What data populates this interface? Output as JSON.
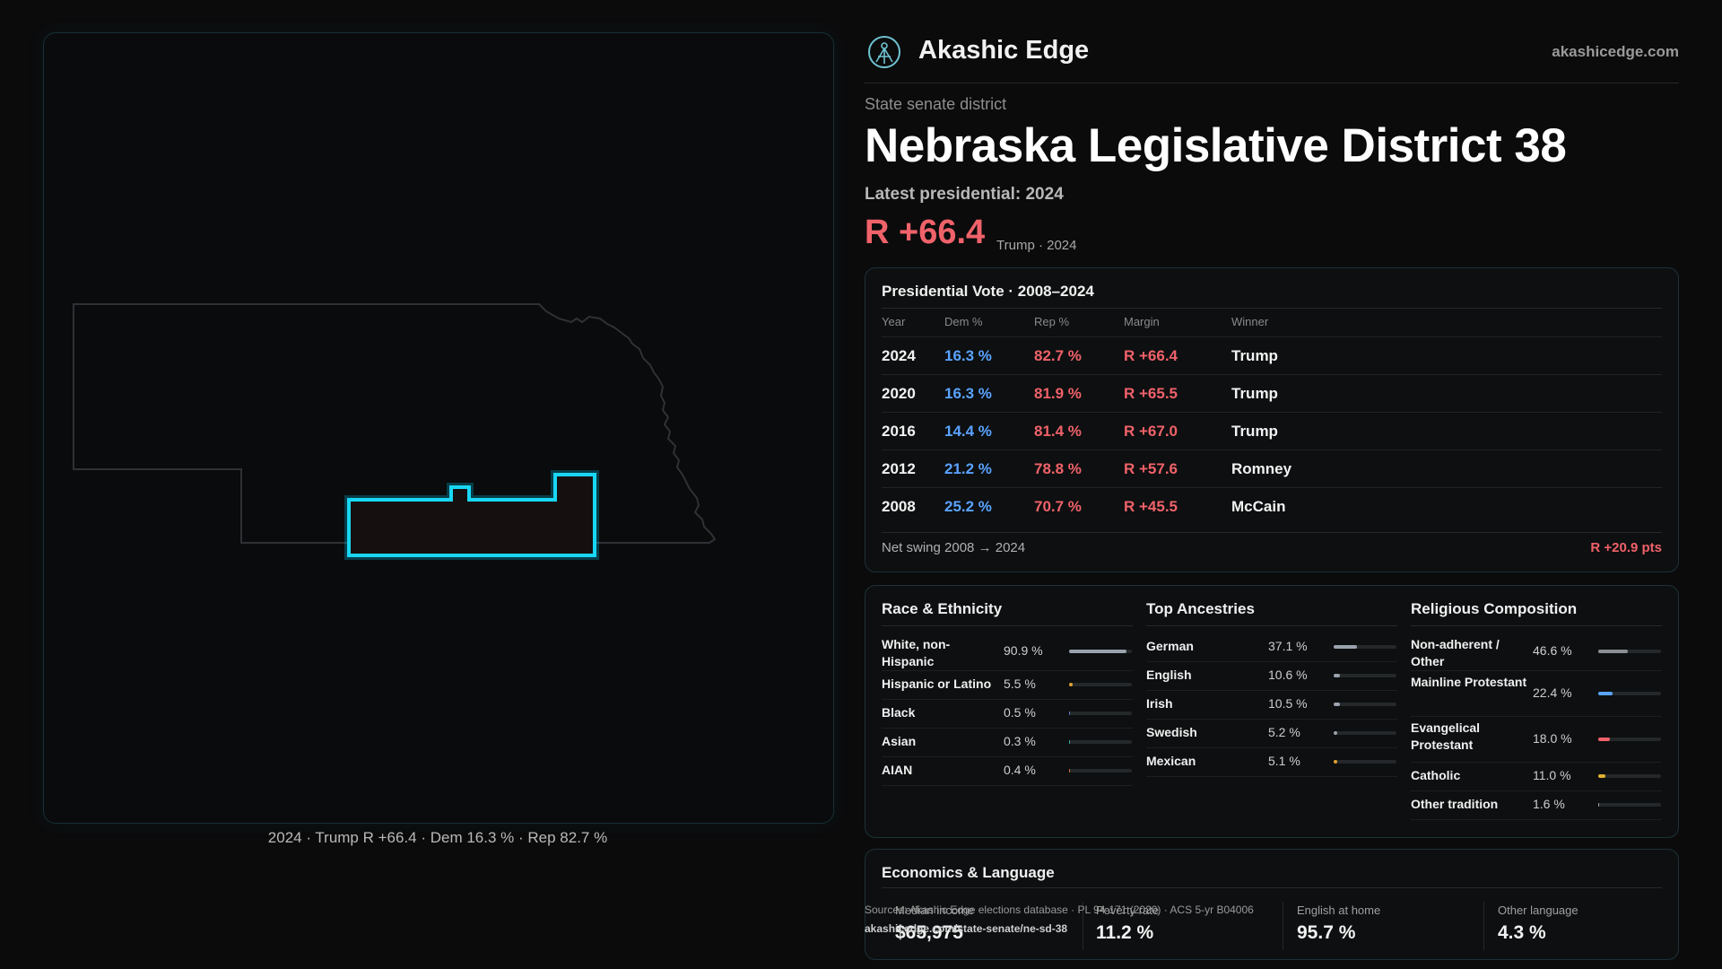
{
  "brand": {
    "name": "Akashic Edge",
    "url": "akashicedge.com",
    "logo_icon": "atom-compass-icon"
  },
  "district": {
    "type": "State senate district",
    "title": "Nebraska Legislative District 38",
    "latest_label": "Latest presidential: 2024",
    "margin": "R +66.4",
    "margin_sub": "Trump · 2024"
  },
  "map": {
    "caption": "2024 · Trump R +66.4 · Dem 16.3 % · Rep 82.7 %"
  },
  "presidential": {
    "title": "Presidential Vote · 2008–2024",
    "columns": [
      "Year",
      "Dem %",
      "Rep %",
      "Margin",
      "Winner"
    ],
    "rows": [
      {
        "year": "2024",
        "dem": "16.3 %",
        "rep": "82.7 %",
        "margin": "R +66.4",
        "winner": "Trump"
      },
      {
        "year": "2020",
        "dem": "16.3 %",
        "rep": "81.9 %",
        "margin": "R +65.5",
        "winner": "Trump"
      },
      {
        "year": "2016",
        "dem": "14.4 %",
        "rep": "81.4 %",
        "margin": "R +67.0",
        "winner": "Trump"
      },
      {
        "year": "2012",
        "dem": "21.2 %",
        "rep": "78.8 %",
        "margin": "R +57.6",
        "winner": "Romney"
      },
      {
        "year": "2008",
        "dem": "25.2 %",
        "rep": "70.7 %",
        "margin": "R +45.5",
        "winner": "McCain"
      }
    ],
    "net_swing_label": "Net swing 2008 → 2024",
    "net_swing_value": "R +20.9 pts"
  },
  "race": {
    "title": "Race & Ethnicity",
    "items": [
      {
        "label": "White, non-Hispanic",
        "value": "90.9 %",
        "pct": 90.9,
        "color": "#9aa3ad"
      },
      {
        "label": "Hispanic or Latino",
        "value": "5.5 %",
        "pct": 5.5,
        "color": "#e0a030"
      },
      {
        "label": "Black",
        "value": "0.5 %",
        "pct": 0.5,
        "color": "#5a7fd0"
      },
      {
        "label": "Asian",
        "value": "0.3 %",
        "pct": 0.3,
        "color": "#3fb0a0"
      },
      {
        "label": "AIAN",
        "value": "0.4 %",
        "pct": 0.4,
        "color": "#d0703a"
      }
    ]
  },
  "ancestry": {
    "title": "Top Ancestries",
    "items": [
      {
        "label": "German",
        "value": "37.1 %",
        "pct": 37.1,
        "color": "#9aa3ad"
      },
      {
        "label": "English",
        "value": "10.6 %",
        "pct": 10.6,
        "color": "#9aa3ad"
      },
      {
        "label": "Irish",
        "value": "10.5 %",
        "pct": 10.5,
        "color": "#9aa3ad"
      },
      {
        "label": "Swedish",
        "value": "5.2 %",
        "pct": 5.2,
        "color": "#9aa3ad"
      },
      {
        "label": "Mexican",
        "value": "5.1 %",
        "pct": 5.1,
        "color": "#e0a030"
      }
    ]
  },
  "religion": {
    "title": "Religious Composition",
    "items": [
      {
        "label": "Non-adherent / Other",
        "value": "46.6 %",
        "pct": 46.6,
        "color": "#8b8f94"
      },
      {
        "label": "Mainline Protestant",
        "value": "22.4 %",
        "pct": 22.4,
        "color": "#5aa3ff"
      },
      {
        "label": "Evangelical Protestant",
        "value": "18.0 %",
        "pct": 18.0,
        "color": "#f0626a"
      },
      {
        "label": "Catholic",
        "value": "11.0 %",
        "pct": 11.0,
        "color": "#e0b030"
      },
      {
        "label": "Other tradition",
        "value": "1.6 %",
        "pct": 1.6,
        "color": "#9aa3ad"
      }
    ]
  },
  "economics": {
    "title": "Economics & Language",
    "items": [
      {
        "label": "Median income",
        "value": "$65,975"
      },
      {
        "label": "Poverty rate",
        "value": "11.2 %"
      },
      {
        "label": "English at home",
        "value": "95.7 %"
      },
      {
        "label": "Other language",
        "value": "4.3 %"
      }
    ]
  },
  "source": {
    "line": "Sources: Akashic Edge elections database · PL 94-171 (2020) · ACS 5-yr B04006",
    "url": "akashicedge.com/state-senate/ne-sd-38"
  }
}
